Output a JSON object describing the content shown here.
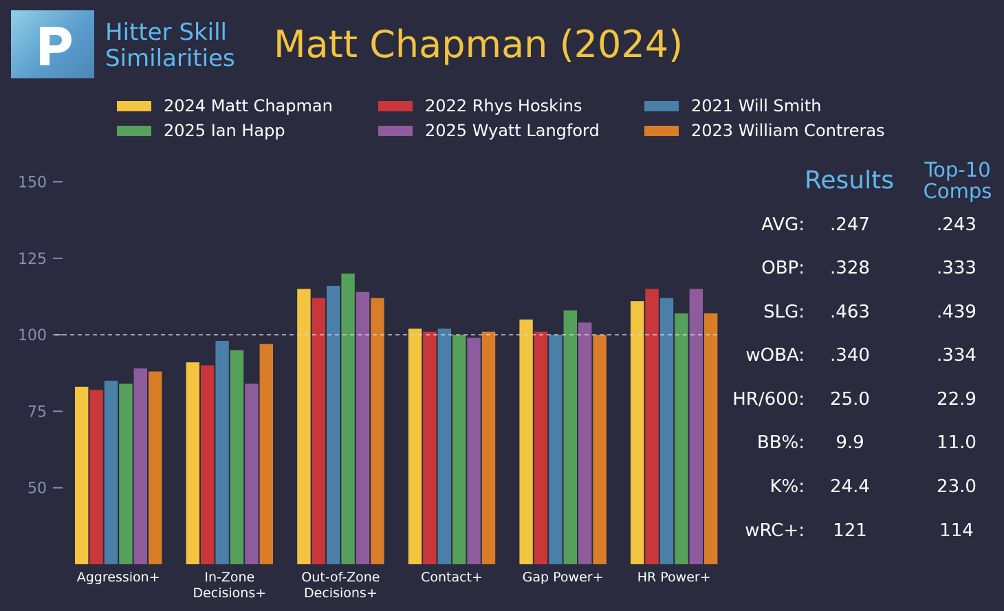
{
  "brand": {
    "line1": "Hitter Skill",
    "line2": "Similarities",
    "logo_icon": "p-logo-icon"
  },
  "title": "Matt Chapman (2024)",
  "legend": [
    {
      "label": "2024 Matt Chapman",
      "color": "#f2c440"
    },
    {
      "label": "2022 Rhys Hoskins",
      "color": "#c9373b"
    },
    {
      "label": "2021 Will Smith",
      "color": "#4a7fa8"
    },
    {
      "label": "2025 Ian Happ",
      "color": "#55a05a"
    },
    {
      "label": "2025 Wyatt Langford",
      "color": "#8e5c9d"
    },
    {
      "label": "2023 William Contreras",
      "color": "#d97d28"
    }
  ],
  "chart_data": {
    "type": "bar",
    "categories": [
      [
        "Aggression+"
      ],
      [
        "In-Zone",
        "Decisions+"
      ],
      [
        "Out-of-Zone",
        "Decisions+"
      ],
      [
        "Contact+"
      ],
      [
        "Gap Power+"
      ],
      [
        "HR Power+"
      ]
    ],
    "series": [
      {
        "name": "2024 Matt Chapman",
        "color": "#f2c440",
        "values": [
          83,
          91,
          115,
          102,
          105,
          111
        ]
      },
      {
        "name": "2022 Rhys Hoskins",
        "color": "#c9373b",
        "values": [
          82,
          90,
          112,
          101,
          101,
          115
        ]
      },
      {
        "name": "2021 Will Smith",
        "color": "#4a7fa8",
        "values": [
          85,
          98,
          116,
          102,
          100,
          112
        ]
      },
      {
        "name": "2025 Ian Happ",
        "color": "#55a05a",
        "values": [
          84,
          95,
          120,
          100,
          108,
          107
        ]
      },
      {
        "name": "2025 Wyatt Langford",
        "color": "#8e5c9d",
        "values": [
          89,
          84,
          114,
          99,
          104,
          115
        ]
      },
      {
        "name": "2023 William Contreras",
        "color": "#d97d28",
        "values": [
          88,
          97,
          112,
          101,
          100,
          107
        ]
      }
    ],
    "yticks": [
      50,
      75,
      100,
      125,
      150
    ],
    "ylim": [
      25,
      160
    ],
    "reference_line": 100,
    "title": "Matt Chapman (2024)",
    "xlabel": "",
    "ylabel": ""
  },
  "stats": {
    "header_results": "Results",
    "header_comps_line1": "Top-10",
    "header_comps_line2": "Comps",
    "rows": [
      {
        "label": "AVG:",
        "results": ".247",
        "comps": ".243"
      },
      {
        "label": "OBP:",
        "results": ".328",
        "comps": ".333"
      },
      {
        "label": "SLG:",
        "results": ".463",
        "comps": ".439"
      },
      {
        "label": "wOBA:",
        "results": ".340",
        "comps": ".334"
      },
      {
        "label": "HR/600:",
        "results": "25.0",
        "comps": "22.9"
      },
      {
        "label": "BB%:",
        "results": "9.9",
        "comps": "11.0"
      },
      {
        "label": "K%:",
        "results": "24.4",
        "comps": "23.0"
      },
      {
        "label": "wRC+:",
        "results": "121",
        "comps": "114"
      }
    ]
  }
}
